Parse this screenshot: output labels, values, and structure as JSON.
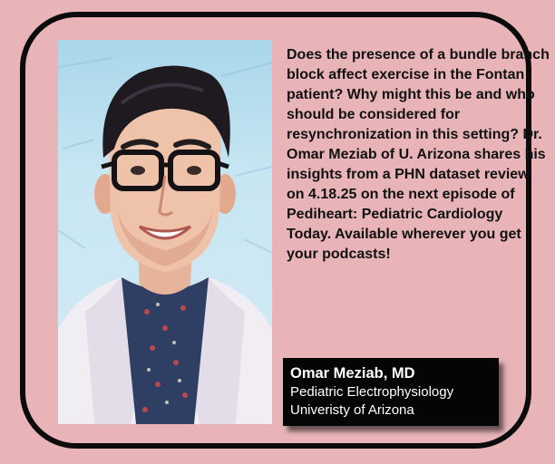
{
  "promo": {
    "question_text": "Does the presence of a bundle branch block affect exercise in the Fontan patient? Why might this be and who should be considered for resynchronization in this setting? Dr. Omar Meziab of U. Arizona shares his insights from a PHN dataset review on 4.18.25 on the next episode of ",
    "podcast_name": "Pediheart: Pediatric Cardiology Today",
    "closing_text": ". Available wherever you get your podcasts!"
  },
  "speaker_card": {
    "name": "Omar Meziab, MD",
    "specialty": "Pediatric Electrophysiology",
    "institution": "Univeristy of Arizona"
  },
  "colors": {
    "background": "#e8b4b8",
    "frame": "#0b0b0b",
    "card_bg": "#050505",
    "card_text": "#ffffff"
  }
}
